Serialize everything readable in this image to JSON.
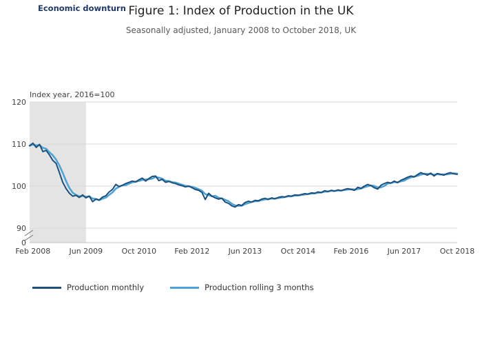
{
  "annotation": {
    "economic_downturn": "Economic downturn"
  },
  "header": {
    "title": "Figure 1: Index of Production in the UK",
    "subtitle": "Seasonally adjusted, January 2008 to October 2018, UK"
  },
  "legend": {
    "items": [
      {
        "label": "Production monthly",
        "color": "#1f4e79"
      },
      {
        "label": "Production rolling 3 months",
        "color": "#4da3d6"
      }
    ]
  },
  "chart_data": {
    "type": "line",
    "title": "Figure 1: Index of Production in the UK",
    "subtitle": "Seasonally adjusted, January 2008 to October 2018, UK",
    "xlabel": "",
    "ylabel": "Index year, 2016=100",
    "x_start": "Jan 2008",
    "x_end": "Oct 2018",
    "x_interval": "month",
    "x_tick_labels": [
      "Feb 2008",
      "Jun 2009",
      "Oct 2010",
      "Feb 2012",
      "Jun 2013",
      "Oct 2014",
      "Feb 2016",
      "Jun 2017",
      "Oct 2018"
    ],
    "x_tick_month_indices": [
      1,
      17,
      33,
      49,
      65,
      81,
      97,
      113,
      129
    ],
    "y_ticks": [
      120,
      110,
      100,
      90,
      0
    ],
    "y_display_range": [
      90,
      120
    ],
    "y_axis_break": true,
    "grid": "horizontal",
    "legend_position": "bottom",
    "shaded_region": {
      "label": "Economic downturn",
      "from": "Jan 2008",
      "to": "Jun 2009",
      "from_index": 0,
      "to_index": 17,
      "color": "#e4e4e4"
    },
    "series": [
      {
        "name": "Production monthly",
        "color": "#1f4e79",
        "line_width": 2,
        "values": [
          109.6,
          110.2,
          109.2,
          109.9,
          108.2,
          108.5,
          107.4,
          106.1,
          105.4,
          103.2,
          100.9,
          99.4,
          98.3,
          97.6,
          97.8,
          97.3,
          97.9,
          97.2,
          97.6,
          96.3,
          96.9,
          96.7,
          97.4,
          97.7,
          98.6,
          99.2,
          100.4,
          99.9,
          100.2,
          100.6,
          100.9,
          101.2,
          101.0,
          101.5,
          101.9,
          101.2,
          101.8,
          102.3,
          102.4,
          101.3,
          101.6,
          100.9,
          101.1,
          100.8,
          100.6,
          100.3,
          100.1,
          99.8,
          100.0,
          99.6,
          99.2,
          99.0,
          98.5,
          96.8,
          98.3,
          97.6,
          97.2,
          96.9,
          97.1,
          96.2,
          95.9,
          95.3,
          95.0,
          95.6,
          95.4,
          96.1,
          96.4,
          96.2,
          96.6,
          96.5,
          96.9,
          97.1,
          96.8,
          97.2,
          97.0,
          97.3,
          97.5,
          97.4,
          97.7,
          97.6,
          97.9,
          97.8,
          98.0,
          98.2,
          98.1,
          98.4,
          98.3,
          98.6,
          98.5,
          98.9,
          98.7,
          99.0,
          98.8,
          99.1,
          98.9,
          99.2,
          99.4,
          99.2,
          99.0,
          99.7,
          99.5,
          100.0,
          100.4,
          100.1,
          99.6,
          99.3,
          100.2,
          100.6,
          100.9,
          100.7,
          101.2,
          100.8,
          101.4,
          101.7,
          102.1,
          102.4,
          102.2,
          102.7,
          103.2,
          102.9,
          102.6,
          103.1,
          102.4,
          103.0,
          102.8,
          102.6,
          103.0,
          103.2,
          102.9,
          102.8
        ]
      },
      {
        "name": "Production rolling 3 months",
        "color": "#4da3d6",
        "line_width": 2.6,
        "derived": "3-month trailing mean of Production monthly"
      }
    ]
  }
}
